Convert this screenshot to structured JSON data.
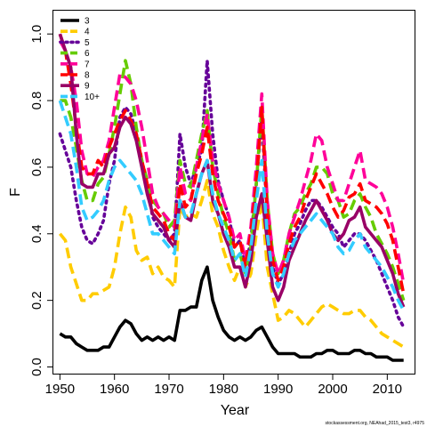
{
  "chart_data": {
    "type": "line",
    "title": "",
    "xlabel": "Year",
    "ylabel": "F",
    "xlim": [
      1948.8,
      2015.0
    ],
    "ylim": [
      -0.02,
      1.07
    ],
    "xticks": [
      1950,
      1960,
      1970,
      1980,
      1990,
      2000,
      2010
    ],
    "yticks": [
      0.0,
      0.2,
      0.4,
      0.6,
      0.8,
      1.0
    ],
    "ytick_labels": [
      "0.0",
      "0.2",
      "0.4",
      "0.6",
      "0.8",
      "1.0"
    ],
    "legend_position": "top-left",
    "footnote": "stockassessment.org, NEAhad_2015_test3, r4975",
    "x": [
      1950,
      1951,
      1952,
      1953,
      1954,
      1955,
      1956,
      1957,
      1958,
      1959,
      1960,
      1961,
      1962,
      1963,
      1964,
      1965,
      1966,
      1967,
      1968,
      1969,
      1970,
      1971,
      1972,
      1973,
      1974,
      1975,
      1976,
      1977,
      1978,
      1979,
      1980,
      1981,
      1982,
      1983,
      1984,
      1985,
      1986,
      1987,
      1988,
      1989,
      1990,
      1991,
      1992,
      1993,
      1994,
      1995,
      1996,
      1997,
      1998,
      1999,
      2000,
      2001,
      2002,
      2003,
      2004,
      2005,
      2006,
      2007,
      2008,
      2009,
      2010,
      2011,
      2012,
      2013
    ],
    "series": [
      {
        "name": "3",
        "color": "#000000",
        "dash": "solid",
        "values": [
          0.1,
          0.09,
          0.09,
          0.07,
          0.06,
          0.05,
          0.05,
          0.05,
          0.06,
          0.06,
          0.09,
          0.12,
          0.14,
          0.13,
          0.1,
          0.08,
          0.09,
          0.08,
          0.09,
          0.08,
          0.09,
          0.08,
          0.17,
          0.17,
          0.18,
          0.18,
          0.26,
          0.3,
          0.2,
          0.15,
          0.11,
          0.09,
          0.08,
          0.09,
          0.08,
          0.09,
          0.11,
          0.12,
          0.09,
          0.06,
          0.04,
          0.04,
          0.04,
          0.04,
          0.03,
          0.03,
          0.03,
          0.04,
          0.04,
          0.05,
          0.05,
          0.04,
          0.04,
          0.04,
          0.05,
          0.05,
          0.04,
          0.04,
          0.03,
          0.03,
          0.03,
          0.02,
          0.02,
          0.02
        ]
      },
      {
        "name": "4",
        "color": "#FFCC00",
        "dash": "dashed",
        "values": [
          0.4,
          0.38,
          0.3,
          0.25,
          0.2,
          0.2,
          0.22,
          0.22,
          0.23,
          0.24,
          0.3,
          0.4,
          0.48,
          0.45,
          0.35,
          0.32,
          0.33,
          0.28,
          0.3,
          0.27,
          0.26,
          0.24,
          0.48,
          0.45,
          0.46,
          0.45,
          0.5,
          0.56,
          0.46,
          0.42,
          0.35,
          0.3,
          0.26,
          0.3,
          0.24,
          0.28,
          0.4,
          0.5,
          0.3,
          0.22,
          0.14,
          0.15,
          0.17,
          0.16,
          0.14,
          0.12,
          0.14,
          0.16,
          0.18,
          0.19,
          0.18,
          0.17,
          0.16,
          0.16,
          0.17,
          0.17,
          0.15,
          0.14,
          0.12,
          0.1,
          0.09,
          0.08,
          0.07,
          0.06
        ]
      },
      {
        "name": "5",
        "color": "#660099",
        "dash": "dotted",
        "values": [
          0.7,
          0.65,
          0.6,
          0.5,
          0.42,
          0.38,
          0.37,
          0.4,
          0.44,
          0.55,
          0.62,
          0.75,
          0.78,
          0.76,
          0.7,
          0.62,
          0.55,
          0.45,
          0.42,
          0.4,
          0.38,
          0.4,
          0.7,
          0.6,
          0.55,
          0.6,
          0.65,
          0.92,
          0.7,
          0.56,
          0.5,
          0.45,
          0.36,
          0.38,
          0.3,
          0.38,
          0.55,
          0.75,
          0.45,
          0.3,
          0.25,
          0.28,
          0.34,
          0.4,
          0.43,
          0.47,
          0.5,
          0.5,
          0.48,
          0.45,
          0.42,
          0.4,
          0.36,
          0.38,
          0.4,
          0.4,
          0.38,
          0.35,
          0.32,
          0.28,
          0.24,
          0.2,
          0.15,
          0.12
        ]
      },
      {
        "name": "6",
        "color": "#66CC00",
        "dash": "dashed",
        "values": [
          0.8,
          0.8,
          0.75,
          0.66,
          0.56,
          0.5,
          0.5,
          0.55,
          0.57,
          0.64,
          0.72,
          0.82,
          0.92,
          0.85,
          0.72,
          0.62,
          0.56,
          0.5,
          0.48,
          0.46,
          0.42,
          0.44,
          0.62,
          0.55,
          0.54,
          0.62,
          0.7,
          0.77,
          0.6,
          0.52,
          0.45,
          0.4,
          0.32,
          0.34,
          0.28,
          0.36,
          0.55,
          0.78,
          0.5,
          0.34,
          0.28,
          0.32,
          0.4,
          0.46,
          0.48,
          0.52,
          0.55,
          0.6,
          0.6,
          0.58,
          0.52,
          0.5,
          0.45,
          0.46,
          0.5,
          0.52,
          0.48,
          0.45,
          0.4,
          0.37,
          0.34,
          0.3,
          0.25,
          0.2
        ]
      },
      {
        "name": "7",
        "color": "#FF0099",
        "dash": "dashed",
        "values": [
          0.98,
          0.95,
          0.9,
          0.8,
          0.65,
          0.58,
          0.57,
          0.6,
          0.62,
          0.68,
          0.78,
          0.88,
          0.87,
          0.85,
          0.8,
          0.72,
          0.62,
          0.52,
          0.48,
          0.46,
          0.44,
          0.42,
          0.6,
          0.52,
          0.5,
          0.6,
          0.68,
          0.76,
          0.62,
          0.55,
          0.5,
          0.45,
          0.38,
          0.4,
          0.32,
          0.42,
          0.6,
          0.82,
          0.5,
          0.34,
          0.28,
          0.32,
          0.4,
          0.45,
          0.5,
          0.56,
          0.62,
          0.7,
          0.68,
          0.6,
          0.55,
          0.5,
          0.5,
          0.55,
          0.6,
          0.65,
          0.56,
          0.55,
          0.54,
          0.52,
          0.48,
          0.42,
          0.34,
          0.25
        ]
      },
      {
        "name": "8",
        "color": "#FF0000",
        "dash": "dashed",
        "values": [
          1.0,
          0.95,
          0.85,
          0.72,
          0.6,
          0.58,
          0.58,
          0.62,
          0.6,
          0.66,
          0.7,
          0.74,
          0.77,
          0.74,
          0.7,
          0.62,
          0.55,
          0.48,
          0.46,
          0.44,
          0.4,
          0.38,
          0.55,
          0.48,
          0.5,
          0.58,
          0.64,
          0.72,
          0.58,
          0.5,
          0.46,
          0.42,
          0.36,
          0.38,
          0.3,
          0.4,
          0.55,
          0.78,
          0.46,
          0.32,
          0.26,
          0.3,
          0.37,
          0.42,
          0.45,
          0.5,
          0.54,
          0.58,
          0.55,
          0.52,
          0.48,
          0.45,
          0.47,
          0.51,
          0.52,
          0.55,
          0.5,
          0.49,
          0.48,
          0.46,
          0.43,
          0.38,
          0.3,
          0.22
        ]
      },
      {
        "name": "9",
        "color": "#990066",
        "dash": "solid",
        "values": [
          1.0,
          0.95,
          0.9,
          0.7,
          0.55,
          0.54,
          0.54,
          0.58,
          0.58,
          0.64,
          0.66,
          0.72,
          0.75,
          0.73,
          0.68,
          0.6,
          0.52,
          0.46,
          0.44,
          0.42,
          0.38,
          0.36,
          0.5,
          0.45,
          0.44,
          0.52,
          0.58,
          0.62,
          0.5,
          0.46,
          0.4,
          0.36,
          0.3,
          0.3,
          0.24,
          0.32,
          0.45,
          0.52,
          0.38,
          0.24,
          0.2,
          0.24,
          0.32,
          0.36,
          0.4,
          0.44,
          0.47,
          0.5,
          0.47,
          0.44,
          0.4,
          0.38,
          0.4,
          0.44,
          0.45,
          0.48,
          0.42,
          0.4,
          0.38,
          0.36,
          0.32,
          0.28,
          0.22,
          0.18
        ]
      },
      {
        "name": "10+",
        "color": "#33CCFF",
        "dash": "dashed",
        "values": [
          0.8,
          0.75,
          0.7,
          0.6,
          0.48,
          0.44,
          0.45,
          0.47,
          0.5,
          0.56,
          0.6,
          0.62,
          0.6,
          0.58,
          0.56,
          0.52,
          0.46,
          0.4,
          0.4,
          0.38,
          0.36,
          0.34,
          0.5,
          0.45,
          0.46,
          0.52,
          0.58,
          0.62,
          0.52,
          0.46,
          0.42,
          0.38,
          0.32,
          0.34,
          0.27,
          0.36,
          0.5,
          0.62,
          0.4,
          0.28,
          0.24,
          0.28,
          0.34,
          0.38,
          0.4,
          0.42,
          0.44,
          0.46,
          0.44,
          0.42,
          0.4,
          0.36,
          0.34,
          0.35,
          0.38,
          0.4,
          0.36,
          0.34,
          0.32,
          0.3,
          0.27,
          0.24,
          0.2,
          0.17
        ]
      }
    ]
  }
}
